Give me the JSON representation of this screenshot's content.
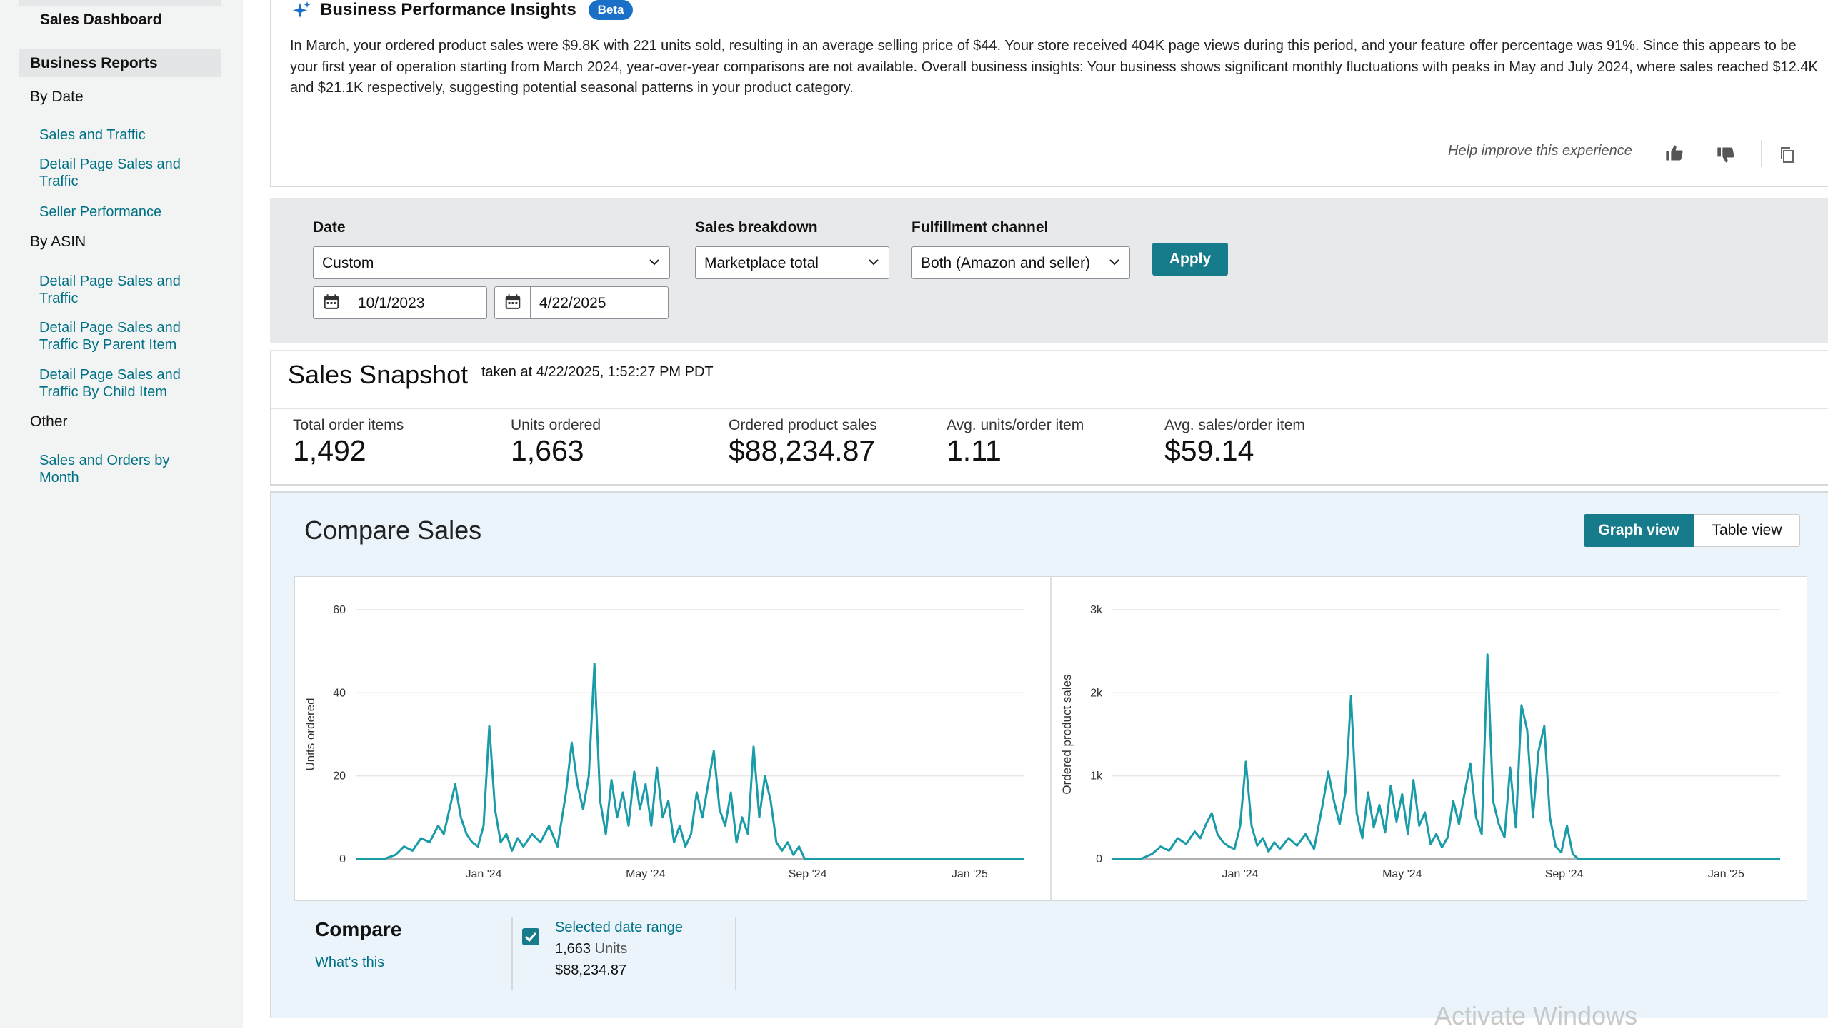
{
  "sidebar": {
    "dashboard": "Sales Dashboard",
    "business_reports": "Business Reports",
    "groups": [
      {
        "heading": "By Date",
        "links": [
          "Sales and Traffic",
          "Detail Page Sales and Traffic",
          "Seller Performance"
        ]
      },
      {
        "heading": "By ASIN",
        "links": [
          "Detail Page Sales and Traffic",
          "Detail Page Sales and Traffic By Parent Item",
          "Detail Page Sales and Traffic By Child Item"
        ]
      },
      {
        "heading": "Other",
        "links": [
          "Sales and Orders by Month"
        ]
      }
    ]
  },
  "insights": {
    "title": "Business Performance Insights",
    "badge": "Beta",
    "text": "In March, your ordered product sales were $9.8K with 221 units sold, resulting in an average selling price of $44. Your store received 404K page views during this period, and your feature offer percentage was 91%. Since this appears to be your first year of operation starting from March 2024, year-over-year comparisons are not available. Overall business insights: Your business shows significant monthly fluctuations with peaks in May and July 2024, where sales reached $12.4K and $21.1K respectively, suggesting potential seasonal patterns in your product category.",
    "help_text": "Help improve this experience",
    "icons": [
      "sparkle-icon",
      "thumbs-up-icon",
      "thumbs-down-icon",
      "copy-icon"
    ]
  },
  "filters": {
    "date_label": "Date",
    "date_value": "Custom",
    "start_date": "10/1/2023",
    "end_date": "4/22/2025",
    "breakdown_label": "Sales breakdown",
    "breakdown_value": "Marketplace total",
    "channel_label": "Fulfillment channel",
    "channel_value": "Both (Amazon and seller)",
    "apply_label": "Apply"
  },
  "snapshot": {
    "title": "Sales Snapshot",
    "taken": "taken at 4/22/2025, 1:52:27 PM PDT",
    "metrics": [
      {
        "label": "Total order items",
        "value": "1,492"
      },
      {
        "label": "Units ordered",
        "value": "1,663"
      },
      {
        "label": "Ordered product sales",
        "value": "$88,234.87"
      },
      {
        "label": "Avg. units/order item",
        "value": "1.11"
      },
      {
        "label": "Avg. sales/order item",
        "value": "$59.14"
      }
    ]
  },
  "compare_sales": {
    "title": "Compare Sales",
    "graph_view": "Graph view",
    "table_view": "Table view",
    "compare_title": "Compare",
    "whats_this": "What's this",
    "selected_range": "Selected date range",
    "units_value": "1,663",
    "units_label": "Units",
    "sales_total": "$88,234.87"
  },
  "chart_data": [
    {
      "type": "line",
      "ylabel": "Units ordered",
      "xlabel": "",
      "ylim": [
        0,
        60
      ],
      "yticks": [
        "0",
        "20",
        "40",
        "60"
      ],
      "xtick_labels": [
        "Jan '24",
        "May '24",
        "Sep '24",
        "Jan '25"
      ],
      "color": "#1a9ba8",
      "series": [
        {
          "points": [
            [
              0,
              0
            ],
            [
              20,
              0
            ],
            [
              28,
              1
            ],
            [
              34,
              3
            ],
            [
              40,
              2
            ],
            [
              46,
              5
            ],
            [
              52,
              4
            ],
            [
              58,
              8
            ],
            [
              62,
              6
            ],
            [
              66,
              12
            ],
            [
              70,
              18
            ],
            [
              74,
              10
            ],
            [
              78,
              6
            ],
            [
              82,
              4
            ],
            [
              86,
              3
            ],
            [
              90,
              8
            ],
            [
              94,
              32
            ],
            [
              98,
              12
            ],
            [
              102,
              4
            ],
            [
              106,
              6
            ],
            [
              110,
              2
            ],
            [
              114,
              5
            ],
            [
              118,
              3
            ],
            [
              124,
              6
            ],
            [
              130,
              4
            ],
            [
              136,
              8
            ],
            [
              142,
              3
            ],
            [
              148,
              16
            ],
            [
              152,
              28
            ],
            [
              156,
              18
            ],
            [
              160,
              12
            ],
            [
              164,
              20
            ],
            [
              168,
              47
            ],
            [
              172,
              14
            ],
            [
              176,
              6
            ],
            [
              180,
              19
            ],
            [
              184,
              10
            ],
            [
              188,
              16
            ],
            [
              192,
              8
            ],
            [
              196,
              21
            ],
            [
              200,
              12
            ],
            [
              204,
              18
            ],
            [
              208,
              8
            ],
            [
              212,
              22
            ],
            [
              216,
              10
            ],
            [
              220,
              14
            ],
            [
              224,
              4
            ],
            [
              228,
              8
            ],
            [
              232,
              3
            ],
            [
              236,
              6
            ],
            [
              240,
              16
            ],
            [
              244,
              10
            ],
            [
              248,
              18
            ],
            [
              252,
              26
            ],
            [
              256,
              12
            ],
            [
              260,
              8
            ],
            [
              264,
              16
            ],
            [
              268,
              4
            ],
            [
              272,
              10
            ],
            [
              276,
              6
            ],
            [
              280,
              27
            ],
            [
              284,
              10
            ],
            [
              288,
              20
            ],
            [
              292,
              14
            ],
            [
              296,
              4
            ],
            [
              300,
              2
            ],
            [
              304,
              4
            ],
            [
              308,
              1
            ],
            [
              312,
              3
            ],
            [
              316,
              0
            ],
            [
              342,
              0
            ],
            [
              390,
              0
            ],
            [
              440,
              0
            ],
            [
              470,
              0
            ]
          ]
        }
      ]
    },
    {
      "type": "line",
      "ylabel": "Ordered product sales",
      "xlabel": "",
      "ylim": [
        0,
        3000
      ],
      "yticks": [
        "0",
        "1k",
        "2k",
        "3k"
      ],
      "xtick_labels": [
        "Jan '24",
        "May '24",
        "Sep '24",
        "Jan '25"
      ],
      "color": "#1a9ba8",
      "series": [
        {
          "points": [
            [
              0,
              0
            ],
            [
              20,
              0
            ],
            [
              28,
              60
            ],
            [
              34,
              150
            ],
            [
              40,
              100
            ],
            [
              46,
              250
            ],
            [
              52,
              180
            ],
            [
              58,
              330
            ],
            [
              62,
              250
            ],
            [
              66,
              420
            ],
            [
              70,
              550
            ],
            [
              74,
              300
            ],
            [
              78,
              200
            ],
            [
              82,
              150
            ],
            [
              86,
              120
            ],
            [
              90,
              400
            ],
            [
              94,
              1170
            ],
            [
              98,
              400
            ],
            [
              102,
              160
            ],
            [
              106,
              250
            ],
            [
              110,
              90
            ],
            [
              114,
              200
            ],
            [
              118,
              120
            ],
            [
              124,
              250
            ],
            [
              130,
              160
            ],
            [
              136,
              300
            ],
            [
              142,
              120
            ],
            [
              148,
              650
            ],
            [
              152,
              1050
            ],
            [
              156,
              700
            ],
            [
              160,
              420
            ],
            [
              164,
              800
            ],
            [
              168,
              1960
            ],
            [
              172,
              550
            ],
            [
              176,
              250
            ],
            [
              180,
              800
            ],
            [
              184,
              380
            ],
            [
              188,
              650
            ],
            [
              192,
              320
            ],
            [
              196,
              880
            ],
            [
              200,
              450
            ],
            [
              204,
              780
            ],
            [
              208,
              300
            ],
            [
              212,
              950
            ],
            [
              216,
              400
            ],
            [
              220,
              560
            ],
            [
              224,
              180
            ],
            [
              228,
              300
            ],
            [
              232,
              140
            ],
            [
              236,
              260
            ],
            [
              240,
              700
            ],
            [
              244,
              420
            ],
            [
              248,
              800
            ],
            [
              252,
              1150
            ],
            [
              256,
              500
            ],
            [
              260,
              300
            ],
            [
              264,
              2460
            ],
            [
              268,
              700
            ],
            [
              272,
              420
            ],
            [
              276,
              260
            ],
            [
              280,
              1100
            ],
            [
              284,
              380
            ],
            [
              288,
              1850
            ],
            [
              292,
              1550
            ],
            [
              296,
              500
            ],
            [
              300,
              1300
            ],
            [
              304,
              1600
            ],
            [
              308,
              500
            ],
            [
              312,
              150
            ],
            [
              316,
              80
            ],
            [
              320,
              400
            ],
            [
              324,
              60
            ],
            [
              328,
              0
            ],
            [
              342,
              0
            ],
            [
              390,
              0
            ],
            [
              440,
              0
            ],
            [
              470,
              0
            ]
          ]
        }
      ]
    }
  ]
}
